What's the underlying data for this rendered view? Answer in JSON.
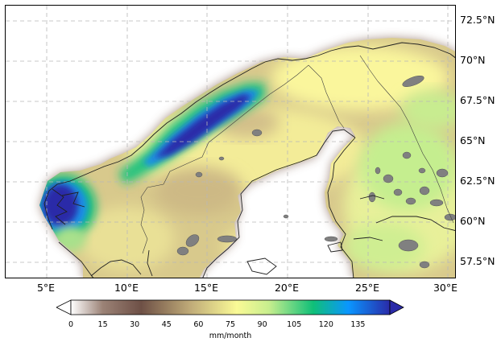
{
  "map": {
    "type": "filled-contour",
    "region": "Fennoscandia",
    "lon_range": [
      3,
      30.5
    ],
    "lat_range": [
      56.5,
      73.5
    ],
    "gridlines": true,
    "lat_labels": [
      {
        "value": 72.5,
        "text": "72.5°N"
      },
      {
        "value": 70,
        "text": "70°N"
      },
      {
        "value": 67.5,
        "text": "67.5°N"
      },
      {
        "value": 65,
        "text": "65°N"
      },
      {
        "value": 62.5,
        "text": "62.5°N"
      },
      {
        "value": 60,
        "text": "60°N"
      },
      {
        "value": 57.5,
        "text": "57.5°N"
      }
    ],
    "lon_labels": [
      {
        "value": 5,
        "text": "5°E"
      },
      {
        "value": 10,
        "text": "10°E"
      },
      {
        "value": 15,
        "text": "15°E"
      },
      {
        "value": 20,
        "text": "20°E"
      },
      {
        "value": 25,
        "text": "25°E"
      },
      {
        "value": 30,
        "text": "30°E"
      }
    ]
  },
  "colorbar": {
    "orientation": "horizontal",
    "extend": "both",
    "unit": "mm/month",
    "ticks": [
      "0",
      "15",
      "30",
      "45",
      "60",
      "75",
      "90",
      "105",
      "120",
      "135"
    ],
    "range": [
      0,
      150
    ],
    "colors": [
      "#ffffff",
      "#9b8276",
      "#6e5046",
      "#c2ae7a",
      "#fafa96",
      "#c8ee8e",
      "#0fbf78",
      "#0a96ff",
      "#2a2aa8"
    ]
  }
}
